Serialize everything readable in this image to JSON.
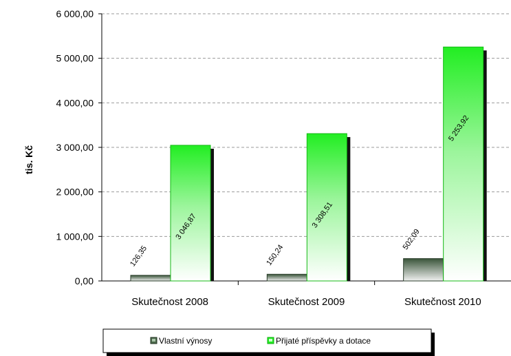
{
  "chart_data": {
    "type": "bar",
    "categories": [
      "Skutečnost 2008",
      "Skutečnost 2009",
      "Skutečnost 2010"
    ],
    "series": [
      {
        "name": "Vlastní výnosy",
        "values": [
          126.35,
          150.24,
          502.09
        ],
        "labels": [
          "126,35",
          "150,24",
          "502,09"
        ],
        "color": "#3f5a3f"
      },
      {
        "name": "Přijaté příspěvky a dotace",
        "values": [
          3046.87,
          3308.51,
          5253.92
        ],
        "labels": [
          "3 046,87",
          "3 308,51",
          "5 253,92"
        ],
        "color": "#22dd22"
      }
    ],
    "ylabel": "tis. Kč",
    "ylim": [
      0,
      6000
    ],
    "yticks": [
      0,
      1000,
      2000,
      3000,
      4000,
      5000,
      6000
    ],
    "ytick_labels": [
      "0,00",
      "1 000,00",
      "2 000,00",
      "3 000,00",
      "4 000,00",
      "5 000,00",
      "6 000,00"
    ],
    "grid": true,
    "legend_position": "bottom"
  }
}
